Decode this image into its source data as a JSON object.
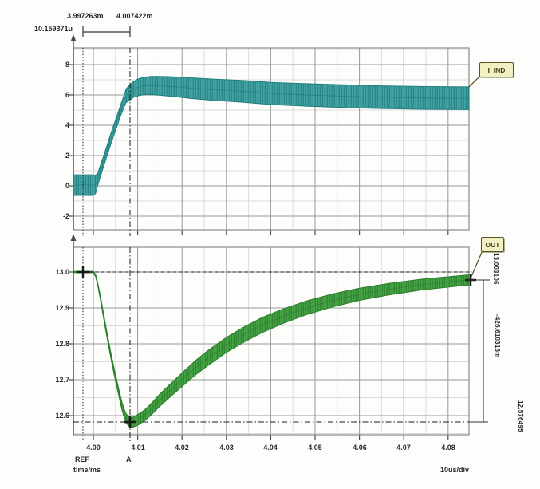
{
  "readout": {
    "t_ref": "3.997263m",
    "t_a": "4.007422m",
    "t_delta": "10.159371u"
  },
  "signals": {
    "top_label": "I_IND",
    "bottom_label": "OUT"
  },
  "measurements": {
    "ref_value": "13.003106",
    "delta_value": "-426.610318m",
    "a_value": "12.576495"
  },
  "axis": {
    "x_ticks": [
      "4.00",
      "4.01",
      "4.02",
      "4.03",
      "4.04",
      "4.05",
      "4.06",
      "4.07",
      "4.08"
    ],
    "top_y_ticks": [
      "8",
      "6",
      "4",
      "2",
      "0",
      "-2"
    ],
    "bottom_y_ticks": [
      "13.0",
      "12.9",
      "12.8",
      "12.7",
      "12.6"
    ],
    "ref_label": "REF",
    "a_label": "A",
    "x_unit": "time/ms",
    "scale_per_div": "10us/div"
  },
  "colors": {
    "teal": "#44a2a2",
    "teal_dark": "#1f7d7d",
    "green": "#46a346",
    "green_dark": "#2b7f2b",
    "grid_major": "#989898",
    "grid_minor": "#dcdcdc",
    "frame": "#8a8a8a",
    "axis_dark": "#4b4b4b",
    "cursor": "#1a1a1a",
    "label_bg": "#f2efc3",
    "label_border": "#55551d"
  },
  "chart_data": [
    {
      "type": "area",
      "name": "I_IND",
      "title": "Inductor current ripple band",
      "xlabel": "time/ms",
      "x_range": [
        3.9955,
        4.0847
      ],
      "x_ticks": [
        4.0,
        4.01,
        4.02,
        4.03,
        4.04,
        4.05,
        4.06,
        4.07,
        4.08
      ],
      "y_ticks": [
        8,
        6,
        4,
        2,
        0,
        -2
      ],
      "y_minor_ticks": [
        9,
        7,
        5,
        3,
        1,
        -1
      ],
      "grid": true,
      "scale_per_div": "10us/div",
      "cursors": {
        "ref_time": "3.997263m",
        "a_time": "4.007422m",
        "delta_time": "10.159371u"
      },
      "envelope": {
        "t": [
          3.9955,
          3.998,
          4.0,
          4.0005,
          4.001,
          4.002,
          4.003,
          4.004,
          4.005,
          4.006,
          4.007,
          4.0074,
          4.008,
          4.009,
          4.01,
          4.0115,
          4.013,
          4.015,
          4.018,
          4.022,
          4.027,
          4.033,
          4.04,
          4.048,
          4.056,
          4.065,
          4.075,
          4.0847
        ],
        "center": [
          0.05,
          0.05,
          0.05,
          0.1,
          0.45,
          1.35,
          2.25,
          3.15,
          4.0,
          4.85,
          5.65,
          5.95,
          6.1,
          6.35,
          6.5,
          6.6,
          6.62,
          6.6,
          6.55,
          6.45,
          6.35,
          6.25,
          6.1,
          6.0,
          5.92,
          5.85,
          5.8,
          5.78
        ],
        "half": [
          0.68,
          0.68,
          0.68,
          0.6,
          0.4,
          0.35,
          0.35,
          0.35,
          0.35,
          0.35,
          0.4,
          0.45,
          0.5,
          0.52,
          0.55,
          0.58,
          0.6,
          0.62,
          0.65,
          0.68,
          0.7,
          0.72,
          0.73,
          0.74,
          0.75,
          0.75,
          0.75,
          0.75
        ]
      }
    },
    {
      "type": "area",
      "name": "OUT",
      "title": "Output voltage transient dip and recovery",
      "xlabel": "time/ms",
      "x_range": [
        3.9955,
        4.0847
      ],
      "x_ticks": [
        4.0,
        4.01,
        4.02,
        4.03,
        4.04,
        4.05,
        4.06,
        4.07,
        4.08
      ],
      "y_ticks": [
        13.0,
        12.9,
        12.8,
        12.7,
        12.6
      ],
      "y_minor_ticks": [
        13.05,
        12.95,
        12.85,
        12.75,
        12.65,
        12.55
      ],
      "grid": true,
      "measured": {
        "ref": 13.003106,
        "a": 12.576495,
        "delta": "-426.610318m"
      },
      "ref_line_y": 13.003,
      "a_line_y": 12.5765,
      "envelope": {
        "t": [
          3.9955,
          3.998,
          4.0,
          4.0005,
          4.001,
          4.0015,
          4.002,
          4.003,
          4.004,
          4.005,
          4.006,
          4.0065,
          4.007,
          4.0074,
          4.008,
          4.0085,
          4.009,
          4.01,
          4.0115,
          4.013,
          4.015,
          4.0175,
          4.02,
          4.023,
          4.026,
          4.03,
          4.034,
          4.038,
          4.043,
          4.048,
          4.054,
          4.06,
          4.067,
          4.074,
          4.0847
        ],
        "center": [
          13.0,
          13.0,
          13.0,
          12.99,
          12.965,
          12.935,
          12.9,
          12.83,
          12.765,
          12.705,
          12.65,
          12.625,
          12.605,
          12.592,
          12.584,
          12.581,
          12.582,
          12.588,
          12.6,
          12.617,
          12.643,
          12.672,
          12.7,
          12.733,
          12.762,
          12.797,
          12.826,
          12.852,
          12.878,
          12.9,
          12.921,
          12.938,
          12.953,
          12.965,
          12.978
        ],
        "half": [
          0.002,
          0.002,
          0.002,
          0.003,
          0.004,
          0.005,
          0.006,
          0.007,
          0.008,
          0.009,
          0.01,
          0.011,
          0.012,
          0.013,
          0.013,
          0.014,
          0.014,
          0.015,
          0.015,
          0.016,
          0.017,
          0.018,
          0.019,
          0.02,
          0.021,
          0.021,
          0.021,
          0.021,
          0.02,
          0.019,
          0.018,
          0.017,
          0.016,
          0.015,
          0.014
        ]
      }
    }
  ]
}
